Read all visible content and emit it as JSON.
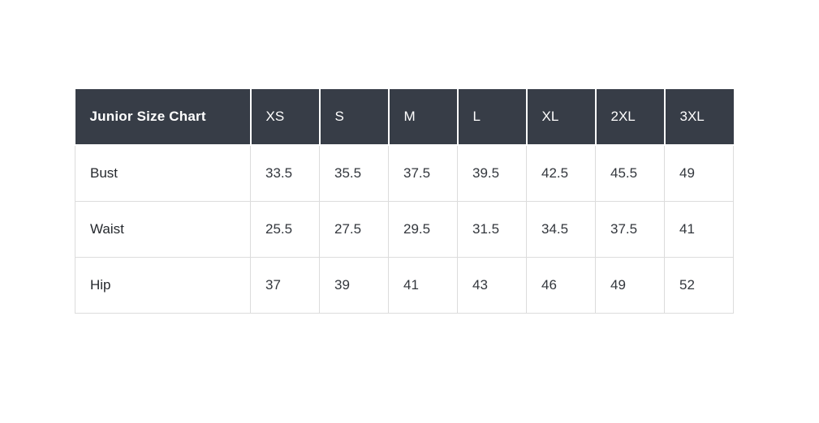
{
  "chart_data": {
    "type": "table",
    "title": "Junior Size Chart",
    "columns": [
      "Junior Size Chart",
      "XS",
      "S",
      "M",
      "L",
      "XL",
      "2XL",
      "3XL"
    ],
    "rows": [
      [
        "Bust",
        "33.5",
        "35.5",
        "37.5",
        "39.5",
        "42.5",
        "45.5",
        "49"
      ],
      [
        "Waist",
        "25.5",
        "27.5",
        "29.5",
        "31.5",
        "34.5",
        "37.5",
        "41"
      ],
      [
        "Hip",
        "37",
        "39",
        "41",
        "43",
        "46",
        "49",
        "52"
      ]
    ]
  },
  "colors": {
    "header_background": "#373d47",
    "header_text": "#ffffff",
    "body_text": "#33373d",
    "border": "#dcdcdc",
    "page_background": "#ffffff"
  }
}
